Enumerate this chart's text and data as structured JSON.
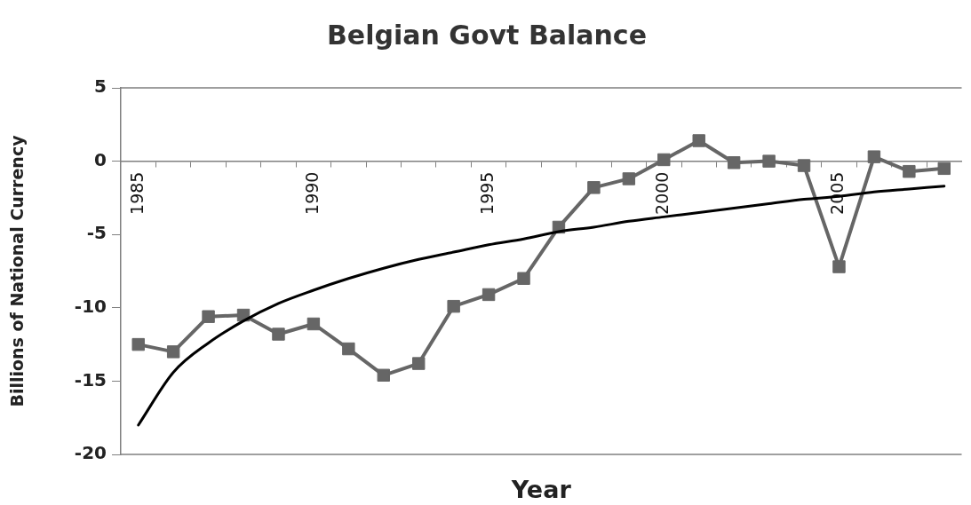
{
  "chart_data": {
    "type": "line",
    "title": "Belgian Govt Balance",
    "xlabel": "Year",
    "ylabel": "Billions of National Currency",
    "marker": "square",
    "x": [
      1985,
      1986,
      1987,
      1988,
      1989,
      1990,
      1991,
      1992,
      1993,
      1994,
      1995,
      1996,
      1997,
      1998,
      1999,
      2000,
      2001,
      2002,
      2003,
      2004,
      2005,
      2006,
      2007,
      2008
    ],
    "series": [
      {
        "color": "#666666",
        "values": [
          -12.5,
          -13.0,
          -10.6,
          -10.5,
          -11.8,
          -11.1,
          -12.8,
          -14.6,
          -13.8,
          -9.9,
          -9.1,
          -8.0,
          -4.5,
          -1.8,
          -1.2,
          0.1,
          1.4,
          -0.1,
          0.0,
          -0.3,
          -7.2,
          0.3,
          -0.7,
          -0.5
        ]
      },
      {
        "type": "line",
        "color": "#000000",
        "marker": "none",
        "x": [
          1985,
          1986,
          1987,
          1988,
          1989,
          1990,
          1991,
          1992,
          1993,
          1994,
          1995,
          1996,
          1997,
          1998,
          1999,
          2000,
          2001,
          2002,
          2003,
          2004,
          2005,
          2006,
          2007,
          2008
        ],
        "values": [
          -18.0,
          -14.4,
          -12.4,
          -10.9,
          -9.7,
          -8.8,
          -8.0,
          -7.3,
          -6.7,
          -6.2,
          -5.7,
          -5.3,
          -4.8,
          -4.5,
          -4.1,
          -3.8,
          -3.5,
          -3.2,
          -2.9,
          -2.6,
          -2.4,
          -2.1,
          -1.9,
          -1.7
        ]
      }
    ],
    "xlim": [
      1984.5,
      2008.5
    ],
    "xticks": [
      1985,
      {
        "value": 1985.5,
        "label": null
      },
      {
        "value": 1986.5,
        "label": null
      },
      {
        "value": 1987.5,
        "label": null
      },
      {
        "value": 1988.5,
        "label": null
      },
      {
        "value": 1989.5,
        "label": null
      },
      1990,
      {
        "value": 1990.5,
        "label": null
      },
      {
        "value": 1991.5,
        "label": null
      },
      {
        "value": 1992.5,
        "label": null
      },
      {
        "value": 1993.5,
        "label": null
      },
      {
        "value": 1994.5,
        "label": null
      },
      1995,
      {
        "value": 1995.5,
        "label": null
      },
      {
        "value": 1996.5,
        "label": null
      },
      {
        "value": 1997.5,
        "label": null
      },
      {
        "value": 1998.5,
        "label": null
      },
      {
        "value": 1999.5,
        "label": null
      },
      2000,
      {
        "value": 2000.5,
        "label": null
      },
      {
        "value": 2001.5,
        "label": null
      },
      {
        "value": 2002.5,
        "label": null
      },
      {
        "value": 2003.5,
        "label": null
      },
      {
        "value": 2004.5,
        "label": null
      },
      2005,
      {
        "value": 2005.5,
        "label": null
      },
      {
        "value": 2006.5,
        "label": null
      },
      {
        "value": 2007.5,
        "label": null
      }
    ],
    "ylim": [
      -20,
      5
    ],
    "yticks": [
      -20,
      -15,
      -10,
      -5,
      0,
      5
    ],
    "grid": false,
    "legend": false
  }
}
